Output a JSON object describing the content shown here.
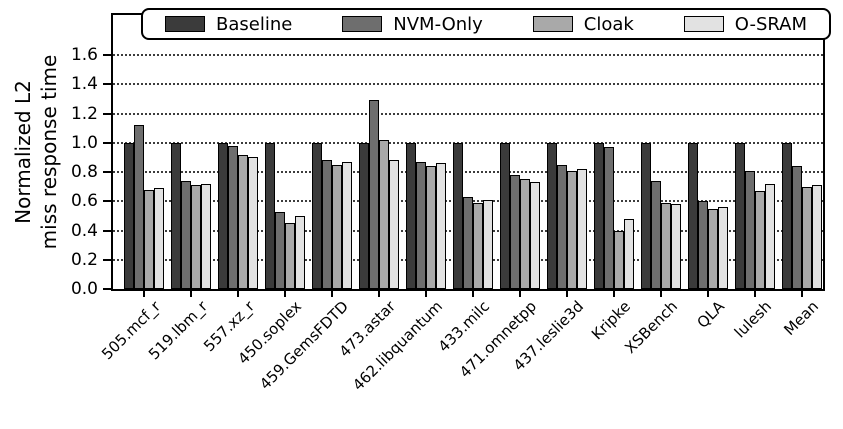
{
  "chart_data": {
    "type": "bar",
    "title": "",
    "xlabel": "",
    "ylabel": "Normalized L2 miss response time",
    "ylabel_lines": [
      "Normalized L2",
      "miss response time"
    ],
    "ylim": [
      0,
      1.9
    ],
    "yticks": [
      0.0,
      0.2,
      0.4,
      0.6,
      0.8,
      1.0,
      1.2,
      1.4,
      1.6
    ],
    "grid": "horizontal-dotted",
    "legend_position": "top",
    "categories": [
      "505.mcf_r",
      "519.lbm_r",
      "557.xz_r",
      "450.soplex",
      "459.GemsFDTD",
      "473.astar",
      "462.libquantum",
      "433.milc",
      "471.omnetpp",
      "437.leslie3d",
      "Kripke",
      "XSBench",
      "QLA",
      "lulesh",
      "Mean"
    ],
    "series": [
      {
        "name": "Baseline",
        "color": "#3b3b3b",
        "values": [
          1.0,
          1.0,
          1.0,
          1.0,
          1.0,
          1.0,
          1.0,
          1.0,
          1.0,
          1.0,
          1.0,
          1.0,
          1.0,
          1.0,
          1.0
        ]
      },
      {
        "name": "NVM-Only",
        "color": "#6e6e6e",
        "values": [
          1.12,
          0.74,
          0.98,
          0.53,
          0.88,
          1.29,
          0.87,
          0.63,
          0.78,
          0.85,
          0.97,
          0.74,
          0.6,
          0.81,
          0.84
        ]
      },
      {
        "name": "Cloak",
        "color": "#a9a9a9",
        "values": [
          0.68,
          0.71,
          0.92,
          0.45,
          0.85,
          1.02,
          0.84,
          0.59,
          0.75,
          0.81,
          0.4,
          0.59,
          0.55,
          0.67,
          0.7
        ]
      },
      {
        "name": "O-SRAM",
        "color": "#e2e2e2",
        "values": [
          0.69,
          0.72,
          0.9,
          0.5,
          0.87,
          0.88,
          0.86,
          0.61,
          0.73,
          0.82,
          0.48,
          0.58,
          0.56,
          0.72,
          0.71
        ]
      }
    ]
  }
}
